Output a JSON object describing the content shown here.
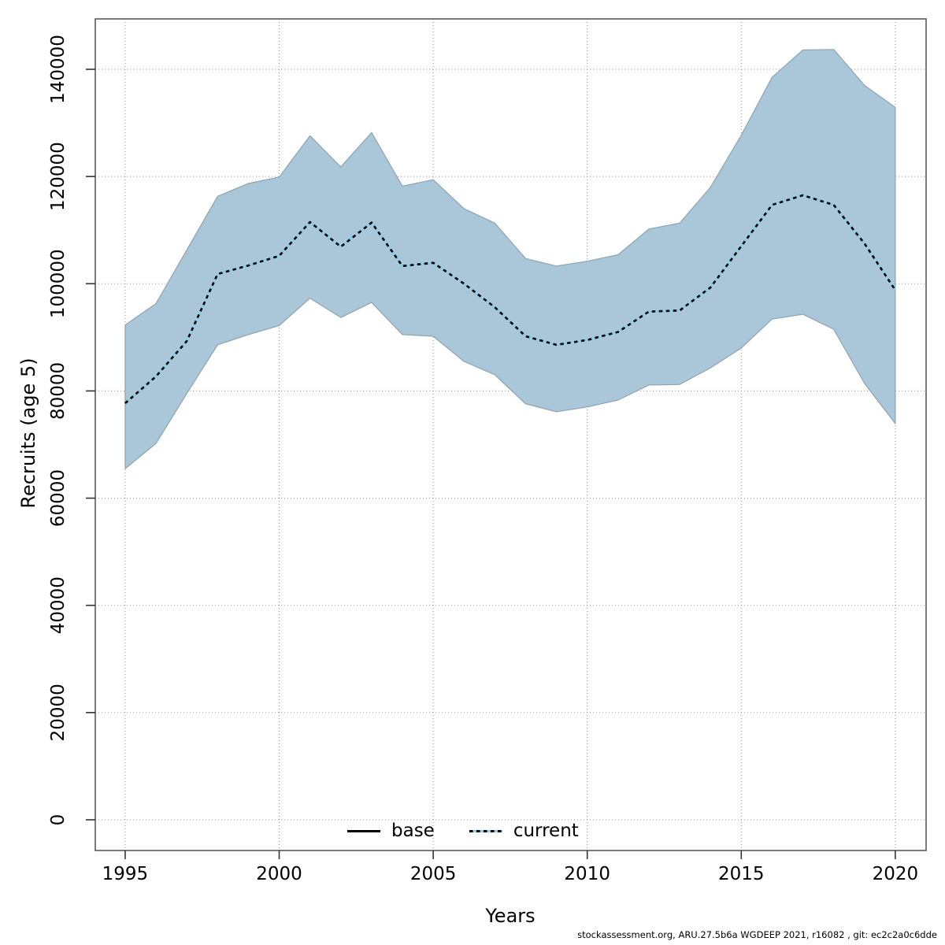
{
  "chart_data": {
    "type": "line",
    "title": "",
    "xlabel": "Years",
    "ylabel": "Recruits (age 5)",
    "x": [
      1995,
      1996,
      1997,
      1998,
      1999,
      2000,
      2001,
      2002,
      2003,
      2004,
      2005,
      2006,
      2007,
      2008,
      2009,
      2010,
      2011,
      2012,
      2013,
      2014,
      2015,
      2016,
      2017,
      2018,
      2019,
      2020
    ],
    "series": [
      {
        "name": "current",
        "style": "dotted",
        "color": "#87ceeb",
        "dash_overlay_color": "#000000",
        "values": [
          77700,
          82700,
          89300,
          101800,
          103400,
          105200,
          111500,
          106900,
          111400,
          103300,
          103900,
          100000,
          95600,
          90200,
          88600,
          89500,
          91000,
          94800,
          95000,
          99300,
          107000,
          114700,
          116500,
          114700,
          107500,
          98800
        ]
      }
    ],
    "band": {
      "name": "current-confidence-band",
      "upper": [
        92300,
        96300,
        106300,
        116300,
        118700,
        119900,
        127600,
        121800,
        128200,
        118200,
        119400,
        114000,
        111300,
        104700,
        103300,
        104200,
        105400,
        110200,
        111300,
        118000,
        127700,
        138500,
        143600,
        143700,
        137000,
        132900
      ],
      "lower": [
        65500,
        70200,
        79500,
        88600,
        90500,
        92200,
        97300,
        93700,
        96500,
        90500,
        90200,
        85500,
        83000,
        77600,
        76100,
        77000,
        78300,
        81100,
        81200,
        84300,
        88000,
        93400,
        94300,
        91500,
        81400,
        73900
      ]
    },
    "xticks": [
      1995,
      2000,
      2005,
      2010,
      2015,
      2020
    ],
    "yticks": [
      0,
      20000,
      40000,
      60000,
      80000,
      100000,
      120000,
      140000
    ],
    "xlim": [
      1994.03,
      2021.0
    ],
    "ylim": [
      -5730,
      149400
    ],
    "grid": "dotted",
    "legend_position": "bottom-center-inside",
    "legend": [
      {
        "label": "base",
        "line": "solid-black"
      },
      {
        "label": "current",
        "line": "dotted-blue"
      }
    ],
    "colors": {
      "band_fill": "#a9c7d9",
      "band_edge": "#8fa3ae",
      "current_line": "#87ceeb",
      "current_dash": "#000000",
      "grid": "#909090",
      "box": "#5a5a5a",
      "tick": "#333333",
      "text": "#000000"
    }
  },
  "footer": {
    "text": "stockassessment.org, ARU.27.5b6a WGDEEP 2021, r16082 , git: ec2c2a0c6dde"
  }
}
